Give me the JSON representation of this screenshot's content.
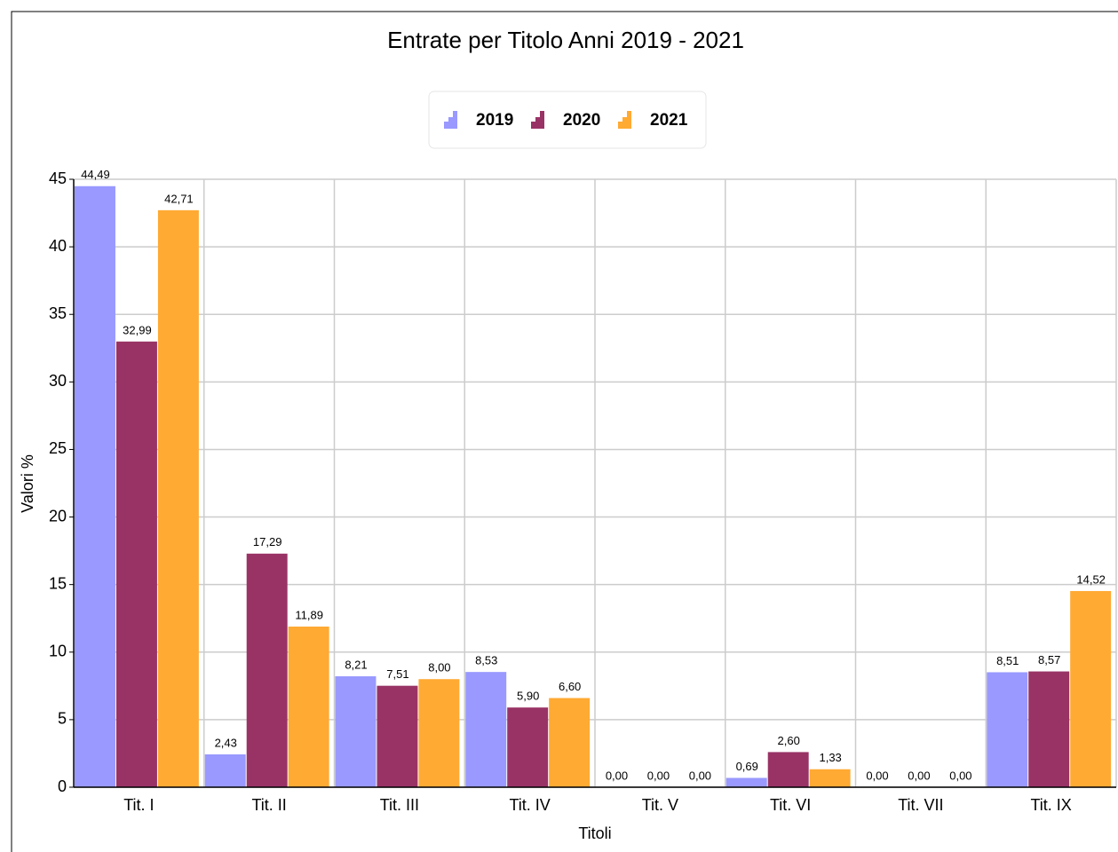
{
  "chart_data": {
    "type": "bar",
    "title": "Entrate per Titolo  Anni  2019 - 2021",
    "x_label": "Titoli",
    "y_label": "Valori %",
    "categories": [
      "Tit. I",
      "Tit. II",
      "Tit. III",
      "Tit. IV",
      "Tit. V",
      "Tit. VI",
      "Tit. VII",
      "Tit. IX"
    ],
    "series": [
      {
        "name": "2019",
        "color": "#9999ff",
        "values": [
          44.49,
          2.43,
          8.21,
          8.53,
          0,
          0.69,
          0,
          8.51
        ],
        "value_labels": [
          "44,49",
          "2,43",
          "8,21",
          "8,53",
          "0,00",
          "0,69",
          "0,00",
          "8,51"
        ]
      },
      {
        "name": "2020",
        "color": "#993366",
        "values": [
          32.99,
          17.29,
          7.51,
          5.9,
          0,
          2.6,
          0,
          8.57
        ],
        "value_labels": [
          "32,99",
          "17,29",
          "7,51",
          "5,90",
          "0,00",
          "2,60",
          "0,00",
          "8,57"
        ]
      },
      {
        "name": "2021",
        "color": "#ffaa33",
        "values": [
          42.71,
          11.89,
          8,
          6.6,
          0,
          1.33,
          0,
          14.52
        ],
        "value_labels": [
          "42,71",
          "11,89",
          "8,00",
          "6,60",
          "0,00",
          "1,33",
          "0,00",
          "14,52"
        ]
      }
    ],
    "ylim": [
      0,
      45
    ],
    "yticks": [
      0,
      5,
      10,
      15,
      20,
      25,
      30,
      35,
      40,
      45
    ],
    "grid": true,
    "legend": "top"
  }
}
